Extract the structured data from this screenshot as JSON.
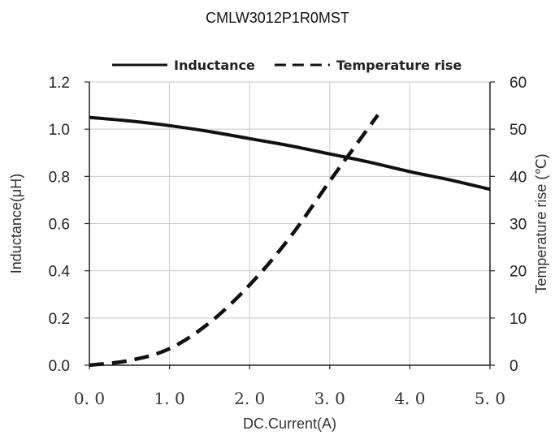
{
  "chart_data": {
    "type": "line",
    "title": "CMLW3012P1R0MST",
    "xlabel": "DC.Current(A)",
    "ylabel_left": "Inductance(μH)",
    "ylabel_right": "Temperature rise (℃)",
    "xlim": [
      0,
      5
    ],
    "ylim_left": [
      0,
      1.2
    ],
    "ylim_right": [
      0,
      60
    ],
    "x_tick_labels": [
      "0. 0",
      "1. 0",
      "2. 0",
      "3. 0",
      "4. 0",
      "5. 0"
    ],
    "y_left_tick_labels": [
      "0.0",
      "0.2",
      "0.4",
      "0.6",
      "0.8",
      "1.0",
      "1.2"
    ],
    "y_right_tick_labels": [
      "0",
      "10",
      "20",
      "30",
      "40",
      "50",
      "60"
    ],
    "grid": true,
    "legend_position": "top",
    "series": [
      {
        "name": "Inductance",
        "axis": "left",
        "style": "solid",
        "color": "#111111",
        "x": [
          0.0,
          0.5,
          1.0,
          1.5,
          2.0,
          2.5,
          3.0,
          3.5,
          4.0,
          4.5,
          5.0
        ],
        "y": [
          1.05,
          1.035,
          1.015,
          0.99,
          0.96,
          0.93,
          0.895,
          0.86,
          0.82,
          0.785,
          0.745
        ]
      },
      {
        "name": "Temperature rise",
        "axis": "right",
        "style": "dashed",
        "color": "#111111",
        "x": [
          0.0,
          0.5,
          1.0,
          1.5,
          2.0,
          2.5,
          3.0,
          3.3,
          3.6
        ],
        "y": [
          0.0,
          1.0,
          3.5,
          9.0,
          17.0,
          27.0,
          39.0,
          46.0,
          53.0
        ]
      }
    ]
  }
}
